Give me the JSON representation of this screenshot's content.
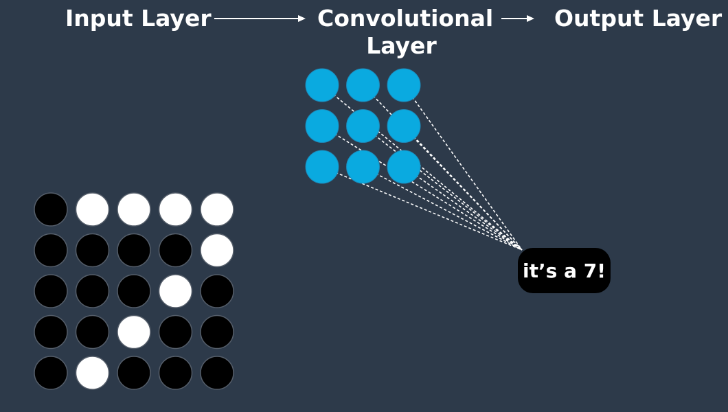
{
  "labels": {
    "input_layer": "Input Layer",
    "conv_layer_line1": "Convolutional",
    "conv_layer_line2": "Layer",
    "output_layer": "Output Layer"
  },
  "output_bubble": {
    "text": "it’s a 7!"
  },
  "colors": {
    "background": "#2d3a4a",
    "input_on": "#ffffff",
    "input_off": "#000000",
    "conv_node": "#0aaae0",
    "connection": "#ffffff",
    "bubble": "#000000"
  },
  "input_grid": {
    "rows": 5,
    "cols": 5,
    "pixels": [
      [
        0,
        1,
        1,
        1,
        1
      ],
      [
        0,
        0,
        0,
        0,
        1
      ],
      [
        0,
        0,
        0,
        1,
        0
      ],
      [
        0,
        0,
        1,
        0,
        0
      ],
      [
        0,
        1,
        0,
        0,
        0
      ]
    ]
  },
  "conv_grid": {
    "rows": 3,
    "cols": 3
  }
}
